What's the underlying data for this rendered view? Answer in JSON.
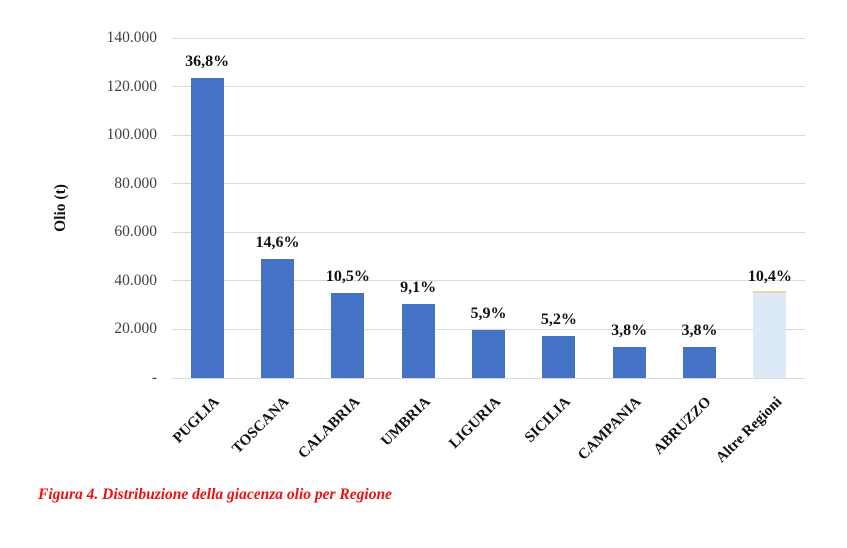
{
  "caption": {
    "text": "Figura 4. Distribuzione della giacenza olio per Regione"
  },
  "chart_data": {
    "type": "bar",
    "title": "",
    "xlabel": "",
    "ylabel": "Olio (t)",
    "ylim": [
      0,
      140000
    ],
    "ytick_interval": 20000,
    "ytick_labels": [
      "-",
      "20.000",
      "40.000",
      "60.000",
      "80.000",
      "100.000",
      "120.000",
      "140.000"
    ],
    "grid": "horizontal",
    "legend": "none",
    "categories": [
      "PUGLIA",
      "TOSCANA",
      "CALABRIA",
      "UMBRIA",
      "LIGURIA",
      "SICILIA",
      "CAMPANIA",
      "ABRUZZO",
      "Altre Regioni"
    ],
    "values": [
      123500,
      49000,
      35200,
      30500,
      19800,
      17500,
      12800,
      12800,
      34900
    ],
    "data_labels": [
      "36,8%",
      "14,6%",
      "10,5%",
      "9,1%",
      "5,9%",
      "5,2%",
      "3,8%",
      "3,8%",
      "10,4%"
    ],
    "bar_colors": [
      "#4472c4",
      "#4472c4",
      "#4472c4",
      "#4472c4",
      "#4472c4",
      "#4472c4",
      "#4472c4",
      "#4472c4",
      "#dce9f6"
    ],
    "colors": {
      "bar_default": "#4472c4",
      "bar_highlight": "#dce9f6",
      "gridline": "#d9d9d9",
      "caption_red": "#ee0f0f"
    }
  }
}
